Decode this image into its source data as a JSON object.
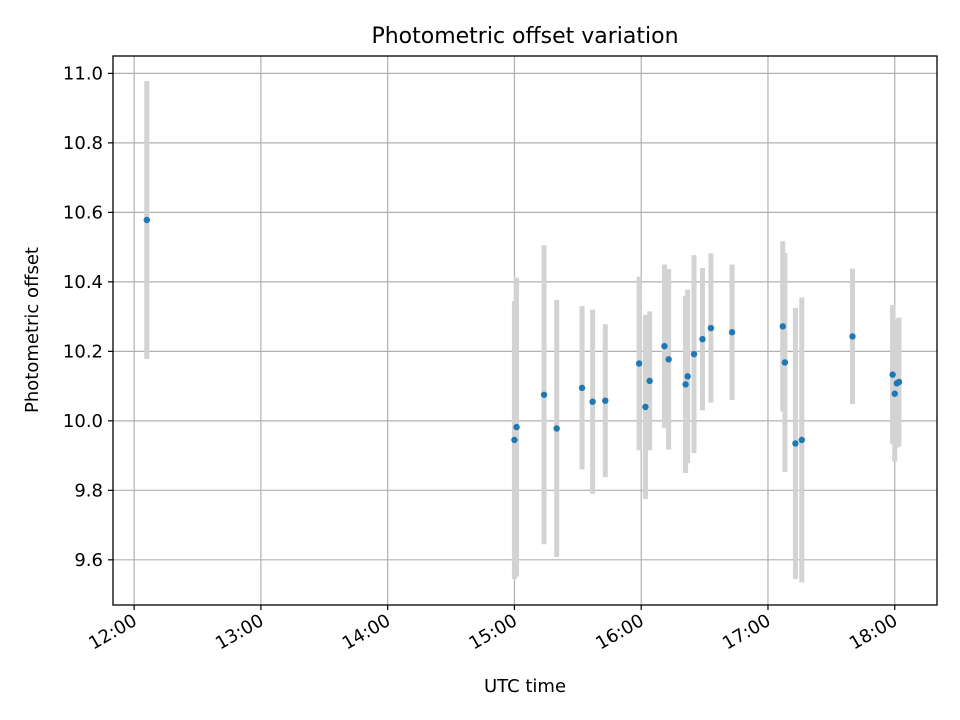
{
  "chart_data": {
    "type": "scatter",
    "title": "Photometric offset variation",
    "xlabel": "UTC time",
    "ylabel": "Photometric offset",
    "x_ticks": [
      "12:00",
      "13:00",
      "14:00",
      "15:00",
      "16:00",
      "17:00",
      "18:00"
    ],
    "y_ticks": [
      9.6,
      9.8,
      10.0,
      10.2,
      10.4,
      10.6,
      10.8,
      11.0
    ],
    "xlim": [
      "11:50",
      "18:20"
    ],
    "ylim": [
      9.47,
      11.05
    ],
    "grid": true,
    "point_color": "#1f77b4",
    "errorbar_color": "#d3d3d3",
    "series": [
      {
        "points": [
          {
            "x": "12:06",
            "y": 10.578,
            "err": 0.4
          },
          {
            "x": "15:00",
            "y": 9.945,
            "err": 0.4
          },
          {
            "x": "15:01",
            "y": 9.982,
            "err": 0.43
          },
          {
            "x": "15:14",
            "y": 10.075,
            "err": 0.43
          },
          {
            "x": "15:20",
            "y": 9.978,
            "err": 0.37
          },
          {
            "x": "15:32",
            "y": 10.095,
            "err": 0.235
          },
          {
            "x": "15:37",
            "y": 10.055,
            "err": 0.265
          },
          {
            "x": "15:43",
            "y": 10.058,
            "err": 0.22
          },
          {
            "x": "15:59",
            "y": 10.165,
            "err": 0.25
          },
          {
            "x": "16:02",
            "y": 10.04,
            "err": 0.265
          },
          {
            "x": "16:04",
            "y": 10.115,
            "err": 0.2
          },
          {
            "x": "16:11",
            "y": 10.215,
            "err": 0.235
          },
          {
            "x": "16:13",
            "y": 10.177,
            "err": 0.26
          },
          {
            "x": "16:21",
            "y": 10.105,
            "err": 0.255
          },
          {
            "x": "16:22",
            "y": 10.128,
            "err": 0.25
          },
          {
            "x": "16:25",
            "y": 10.192,
            "err": 0.285
          },
          {
            "x": "16:29",
            "y": 10.235,
            "err": 0.205
          },
          {
            "x": "16:33",
            "y": 10.267,
            "err": 0.215
          },
          {
            "x": "16:43",
            "y": 10.255,
            "err": 0.195
          },
          {
            "x": "17:07",
            "y": 10.272,
            "err": 0.245
          },
          {
            "x": "17:08",
            "y": 10.168,
            "err": 0.315
          },
          {
            "x": "17:13",
            "y": 9.935,
            "err": 0.39
          },
          {
            "x": "17:16",
            "y": 9.945,
            "err": 0.41
          },
          {
            "x": "17:40",
            "y": 10.243,
            "err": 0.195
          },
          {
            "x": "17:59",
            "y": 10.133,
            "err": 0.2
          },
          {
            "x": "18:00",
            "y": 10.078,
            "err": 0.195
          },
          {
            "x": "18:01",
            "y": 10.108,
            "err": 0.185
          },
          {
            "x": "18:02",
            "y": 10.112,
            "err": 0.185
          }
        ]
      }
    ]
  }
}
